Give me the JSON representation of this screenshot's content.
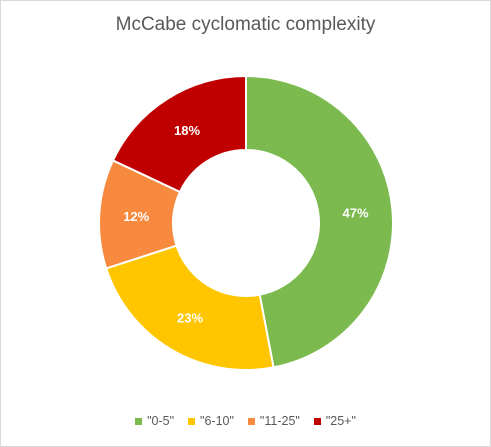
{
  "chart_data": {
    "type": "pie",
    "title": "McCabe cyclomatic complexity",
    "categories": [
      "\"0-5\"",
      "\"6-10\"",
      "\"11-25\"",
      "\"25+\""
    ],
    "values": [
      47,
      23,
      12,
      18
    ],
    "value_labels": [
      "47%",
      "23%",
      "12%",
      "18%"
    ],
    "colors": [
      "#7cba4f",
      "#ffc600",
      "#f78a3e",
      "#c00000"
    ],
    "donut": true,
    "legend_position": "bottom"
  }
}
